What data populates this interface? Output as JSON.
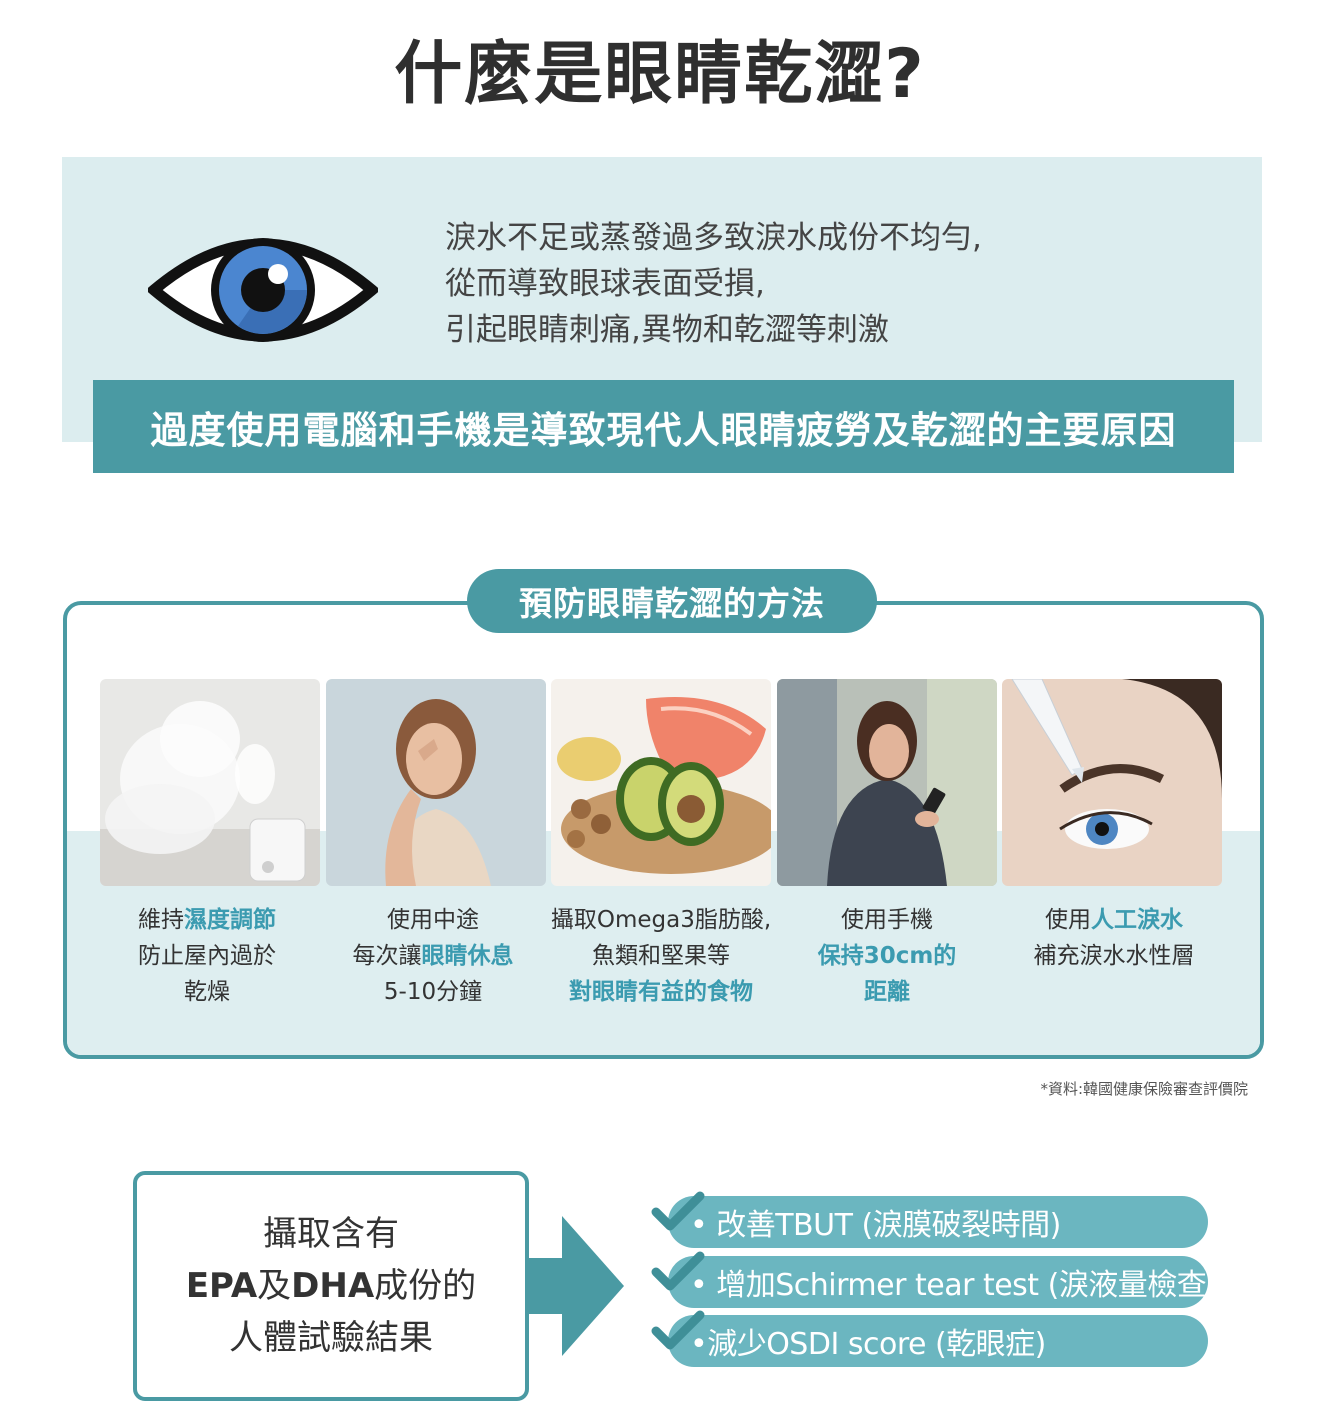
{
  "title": "什麼是眼睛乾澀?",
  "intro": {
    "lines": [
      "淚水不足或蒸發過多致淚水成份不均勻,",
      "從而導致眼球表面受損,",
      "引起眼睛刺痛,異物和乾澀等刺激"
    ]
  },
  "banner": "過度使用電腦和手機是導致現代人眼睛疲勞及乾澀的主要原因",
  "prevention": {
    "title": "預防眼睛乾澀的方法",
    "items": [
      {
        "l1a": "維持",
        "l1b": "濕度調節",
        "l2": "防止屋內過於",
        "l3": "乾燥"
      },
      {
        "l1": "使用中途",
        "l2a": "每次讓",
        "l2b": "眼睛休息",
        "l3": "5-10分鐘"
      },
      {
        "l1": "攝取Omega3脂肪酸,",
        "l2": "魚類和堅果等",
        "l3": "對眼睛有益的食物"
      },
      {
        "l1": "使用手機",
        "l2": "保持30cm的",
        "l3": "距離"
      },
      {
        "l1a": "使用",
        "l1b": "人工淚水",
        "l2": "補充淚水水性層"
      }
    ]
  },
  "source": "*資料:韓國健康保險審查評價院",
  "result": {
    "l1": "攝取含有",
    "l2a": "EPA",
    "l2b": "及",
    "l2c": "DHA",
    "l2d": "成份的",
    "l3": "人體試驗結果"
  },
  "benefits": [
    "• 改善TBUT (淚膜破裂時間)",
    "• 增加Schirmer tear test (淚液量檢查)",
    "•減少OSDI score (乾眼症)"
  ],
  "colors": {
    "accent": "#4a9aa3",
    "highlight": "#3b9bb0",
    "panel": "#dcedef",
    "pill": "#6bb6c0"
  },
  "icons": [
    "eye-icon",
    "checkmark-icon",
    "arrow-right-icon"
  ]
}
